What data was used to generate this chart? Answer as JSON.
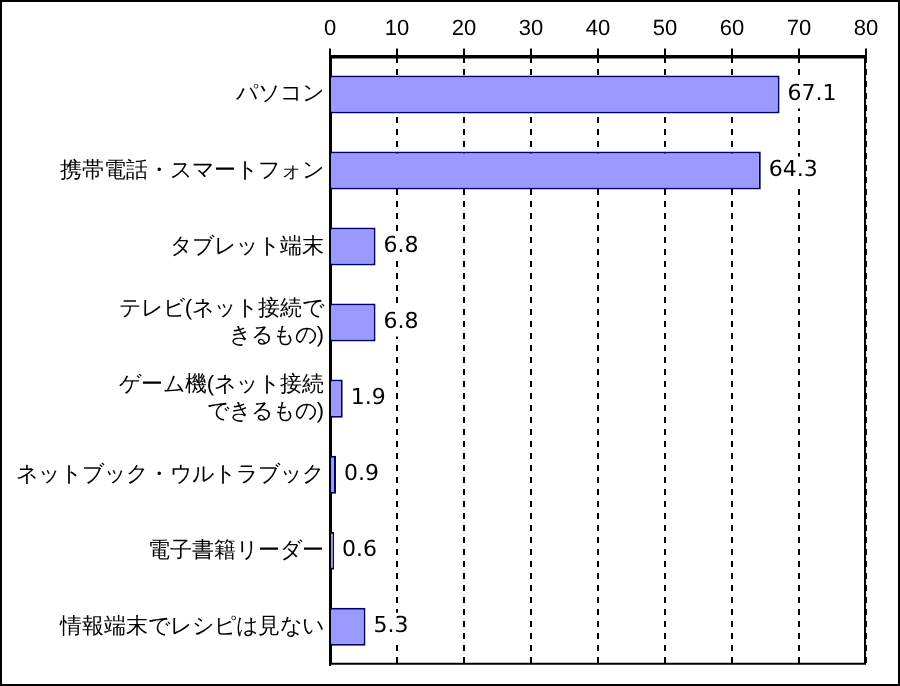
{
  "chart_data": {
    "type": "bar",
    "orientation": "horizontal",
    "categories": [
      "パソコン",
      "携帯電話・スマートフォン",
      "タブレット端末",
      "テレビ(ネット接続できるもの)",
      "ゲーム機(ネット接続できるもの)",
      "ネットブック・ウルトラブック",
      "電子書籍リーダー",
      "情報端末でレシピは見ない"
    ],
    "values": [
      67.1,
      64.3,
      6.8,
      6.8,
      1.9,
      0.9,
      0.6,
      5.3
    ],
    "color": "#9999ff",
    "xlim": [
      0,
      80
    ],
    "xticks": [
      0,
      10,
      20,
      30,
      40,
      50,
      60,
      70,
      80
    ],
    "grid": "x",
    "data_labels": true
  }
}
